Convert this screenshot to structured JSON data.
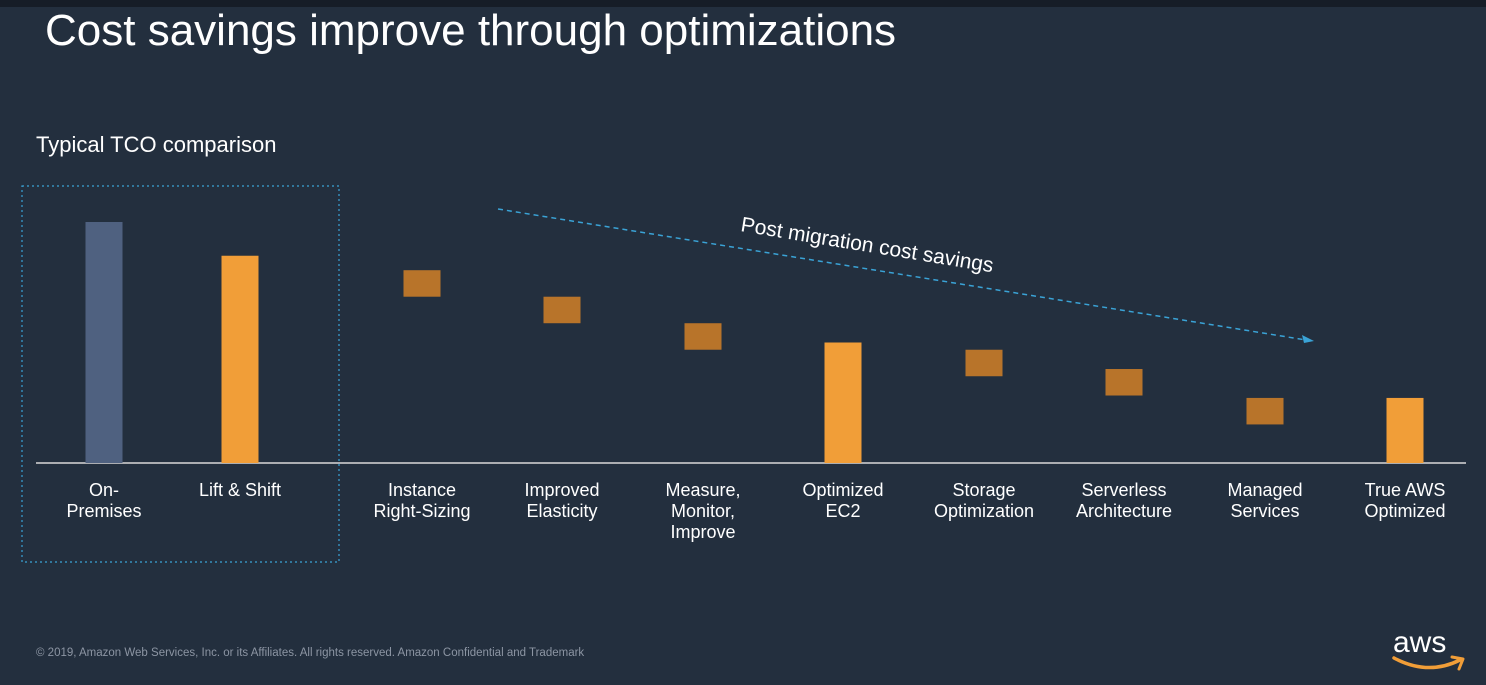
{
  "slide": {
    "title": "Cost savings improve through optimizations",
    "subtitle": "Typical TCO comparison",
    "footer": "© 2019, Amazon Web Services, Inc. or its Affiliates. All rights reserved. Amazon Confidential and Trademark",
    "logo_text": "aws"
  },
  "colors": {
    "background": "#232F3E",
    "on_premises_bar": "#4F6180",
    "lift_shift_bar": "#F19E38",
    "step_box": "#B8742A",
    "optimized_bar": "#F19E38",
    "baseline": "#D9D9D9",
    "dashed_accent": "#3AA3D6"
  },
  "chart_data": {
    "type": "bar",
    "subtype": "waterfall",
    "title": "Typical TCO comparison",
    "xlabel": "",
    "ylabel": "",
    "ylim": [
      0,
      100
    ],
    "grid": false,
    "legend": "none",
    "categories": [
      "On-\nPremises",
      "Lift & Shift",
      "Instance\nRight-Sizing",
      "Improved\nElasticity",
      "Measure,\nMonitor,\nImprove",
      "Optimized\nEC2",
      "Storage\nOptimization",
      "Serverless\nArchitecture",
      "Managed\nServices",
      "True AWS\nOptimized"
    ],
    "bars": [
      {
        "kind": "total",
        "value": 100
      },
      {
        "kind": "total",
        "value": 86
      },
      {
        "kind": "step",
        "from": 80,
        "to": 69
      },
      {
        "kind": "step",
        "from": 69,
        "to": 58
      },
      {
        "kind": "step",
        "from": 58,
        "to": 47
      },
      {
        "kind": "total",
        "value": 50
      },
      {
        "kind": "step",
        "from": 47,
        "to": 36
      },
      {
        "kind": "step",
        "from": 39,
        "to": 28
      },
      {
        "kind": "step",
        "from": 27,
        "to": 16
      },
      {
        "kind": "total",
        "value": 27
      }
    ],
    "annotation": "Post migration cost savings",
    "highlight_group": [
      "On-\nPremises",
      "Lift & Shift"
    ]
  }
}
